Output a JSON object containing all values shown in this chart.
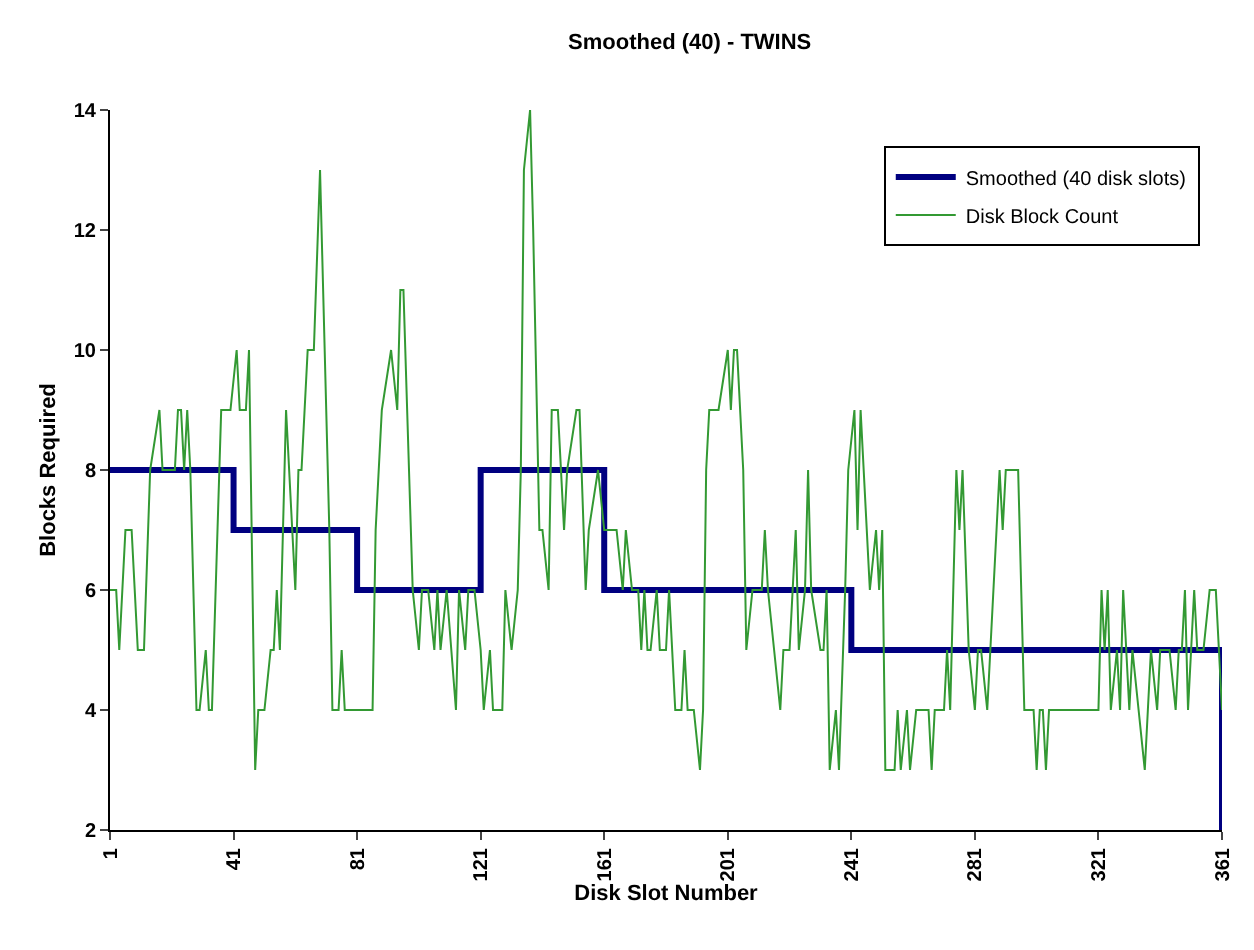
{
  "chart_data": {
    "type": "line",
    "title": "Smoothed (40) - TWINS",
    "xlabel": "Disk Slot Number",
    "ylabel": "Blocks Required",
    "xlim": [
      1,
      361
    ],
    "xticks": [
      1,
      41,
      81,
      121,
      161,
      201,
      241,
      281,
      321,
      361
    ],
    "ylim": [
      2,
      14
    ],
    "yticks": [
      2,
      4,
      6,
      8,
      10,
      12,
      14
    ],
    "grid": false,
    "legend": "top right",
    "marker": "none",
    "series": [
      {
        "name": "Smoothed (40 disk slots)",
        "type": "step",
        "color": "#000080",
        "x": [
          1,
          41,
          81,
          121,
          161,
          241,
          361
        ],
        "values": [
          8,
          7,
          6,
          8,
          6,
          5,
          2
        ]
      },
      {
        "name": "Disk Block Count",
        "type": "line",
        "color": "#339933",
        "x": [
          1,
          3,
          4,
          6,
          8,
          9,
          10,
          12,
          14,
          17,
          18,
          22,
          23,
          24,
          25,
          26,
          27,
          29,
          30,
          32,
          33,
          34,
          37,
          39,
          40,
          42,
          43,
          45,
          46,
          48,
          49,
          51,
          53,
          54,
          55,
          56,
          58,
          60,
          61,
          62,
          63,
          65,
          67,
          69,
          72,
          73,
          75,
          76,
          77,
          86,
          87,
          89,
          92,
          94,
          95,
          96,
          99,
          101,
          102,
          104,
          106,
          107,
          108,
          110,
          113,
          114,
          116,
          117,
          119,
          121,
          122,
          124,
          125,
          128,
          129,
          131,
          133,
          134,
          135,
          137,
          138,
          140,
          141,
          143,
          144,
          146,
          148,
          149,
          152,
          153,
          155,
          156,
          159,
          161,
          165,
          167,
          168,
          170,
          172,
          173,
          174,
          175,
          176,
          178,
          179,
          181,
          182,
          184,
          186,
          187,
          188,
          190,
          192,
          193,
          194,
          195,
          198,
          201,
          202,
          203,
          204,
          206,
          207,
          209,
          212,
          213,
          214,
          216,
          218,
          219,
          221,
          223,
          224,
          226,
          227,
          228,
          231,
          232,
          233,
          234,
          236,
          237,
          239,
          240,
          242,
          243,
          244,
          245,
          247,
          249,
          250,
          251,
          252,
          255,
          256,
          257,
          259,
          260,
          262,
          264,
          266,
          267,
          268,
          271,
          272,
          273,
          274,
          275,
          276,
          277,
          279,
          281,
          282,
          283,
          285,
          286,
          288,
          289,
          290,
          291,
          295,
          297,
          300,
          301,
          302,
          303,
          304,
          305,
          319,
          321,
          322,
          323,
          324,
          325,
          327,
          328,
          329,
          331,
          332,
          334,
          336,
          337,
          338,
          340,
          341,
          344,
          346,
          347,
          348,
          349,
          350,
          352,
          353,
          355,
          357,
          359,
          360,
          361
        ],
        "values": [
          6,
          6,
          5,
          7,
          7,
          6,
          5,
          5,
          8,
          9,
          8,
          8,
          9,
          9,
          8,
          9,
          8,
          4,
          4,
          5,
          4,
          4,
          9,
          9,
          9,
          10,
          9,
          9,
          10,
          3,
          4,
          4,
          5,
          5,
          6,
          5,
          9,
          7,
          6,
          8,
          8,
          10,
          10,
          13,
          7,
          4,
          4,
          5,
          4,
          4,
          7,
          9,
          10,
          9,
          11,
          11,
          6,
          5,
          6,
          6,
          5,
          6,
          5,
          6,
          4,
          6,
          5,
          6,
          6,
          5,
          4,
          5,
          4,
          4,
          6,
          5,
          6,
          8,
          13,
          14,
          12,
          7,
          7,
          6,
          9,
          9,
          7,
          8,
          9,
          9,
          6,
          7,
          8,
          7,
          7,
          6,
          7,
          6,
          6,
          5,
          6,
          5,
          5,
          6,
          5,
          5,
          6,
          4,
          4,
          5,
          4,
          4,
          3,
          4,
          8,
          9,
          9,
          10,
          9,
          10,
          10,
          8,
          5,
          6,
          6,
          7,
          6,
          5,
          4,
          5,
          5,
          7,
          5,
          6,
          8,
          6,
          5,
          5,
          6,
          3,
          4,
          3,
          6,
          8,
          9,
          7,
          9,
          8,
          6,
          7,
          6,
          7,
          3,
          3,
          4,
          3,
          4,
          3,
          4,
          4,
          4,
          3,
          4,
          4,
          5,
          4,
          6,
          8,
          7,
          8,
          5,
          4,
          5,
          5,
          4,
          5,
          7,
          8,
          7,
          8,
          8,
          4,
          4,
          3,
          4,
          4,
          3,
          4,
          4,
          4,
          6,
          5,
          6,
          4,
          5,
          4,
          6,
          4,
          5,
          4,
          3,
          4,
          5,
          4,
          5,
          5,
          4,
          5,
          5,
          6,
          4,
          6,
          5,
          5,
          6,
          6,
          5,
          4
        ]
      }
    ]
  }
}
